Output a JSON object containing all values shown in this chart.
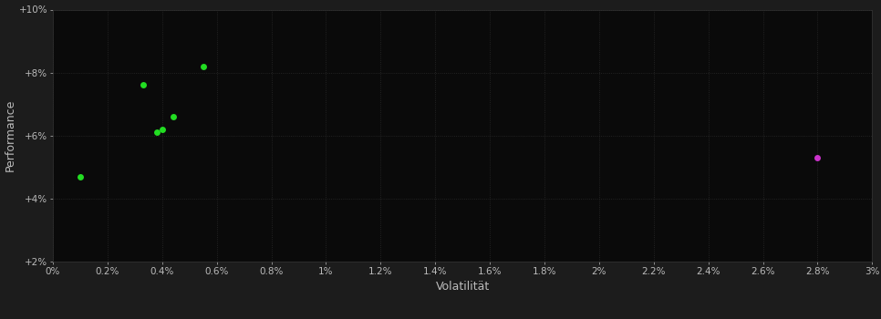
{
  "background_color": "#1c1c1c",
  "plot_bg_color": "#0a0a0a",
  "grid_color": "#2e2e2e",
  "text_color": "#bbbbbb",
  "green_points": [
    [
      0.001,
      0.047
    ],
    [
      0.0033,
      0.076
    ],
    [
      0.0038,
      0.061
    ],
    [
      0.004,
      0.062
    ],
    [
      0.0044,
      0.066
    ],
    [
      0.0055,
      0.082
    ]
  ],
  "magenta_points": [
    [
      0.028,
      0.053
    ]
  ],
  "green_color": "#22dd22",
  "magenta_color": "#cc33cc",
  "xlabel": "Volatilität",
  "ylabel": "Performance",
  "xlim": [
    0.0,
    0.03
  ],
  "ylim": [
    0.02,
    0.1
  ],
  "xticks": [
    0.0,
    0.002,
    0.004,
    0.006,
    0.008,
    0.01,
    0.012,
    0.014,
    0.016,
    0.018,
    0.02,
    0.022,
    0.024,
    0.026,
    0.028,
    0.03
  ],
  "xtick_labels": [
    "0%",
    "0.2%",
    "0.4%",
    "0.6%",
    "0.8%",
    "1%",
    "1.2%",
    "1.4%",
    "1.6%",
    "1.8%",
    "2%",
    "2.2%",
    "2.4%",
    "2.6%",
    "2.8%",
    "3%"
  ],
  "yticks": [
    0.02,
    0.04,
    0.06,
    0.08,
    0.1
  ],
  "ytick_labels": [
    "+2%",
    "+4%",
    "+6%",
    "+8%",
    "+10%"
  ],
  "marker_size": 5,
  "fig_width": 9.66,
  "fig_height": 3.5,
  "dpi": 100
}
